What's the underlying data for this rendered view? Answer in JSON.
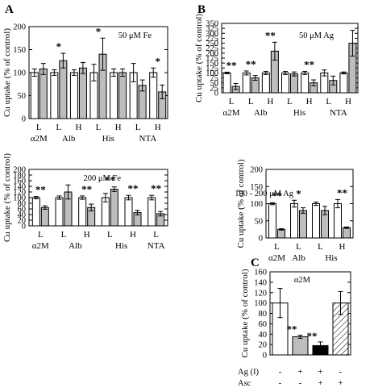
{
  "colors": {
    "white_bar": "#ffffff",
    "gray_bar": "#bdbdbd",
    "black_bar": "#000000",
    "axis": "#000000"
  },
  "chart_data": [
    {
      "panel_letter": "A",
      "type": "bar",
      "annotation": "50 μM Fe",
      "ylabel": "Cu uptake (% of control)",
      "ylim": [
        0,
        200
      ],
      "yticks": [
        "0",
        "50",
        "100",
        "150",
        "200"
      ],
      "groups": [
        {
          "name": "α2M",
          "bars": [
            {
              "label": "L",
              "values": [
                100,
                108
              ],
              "errors": [
                8,
                12
              ],
              "sig": ""
            }
          ]
        },
        {
          "name": "Alb",
          "bars": [
            {
              "label": "L",
              "values": [
                100,
                126
              ],
              "errors": [
                6,
                16
              ],
              "sig": "*"
            },
            {
              "label": "H",
              "values": [
                100,
                110
              ],
              "errors": [
                6,
                12
              ],
              "sig": ""
            }
          ]
        },
        {
          "name": "His",
          "bars": [
            {
              "label": "L",
              "values": [
                100,
                140
              ],
              "errors": [
                18,
                35
              ],
              "sig": "*"
            },
            {
              "label": "H",
              "values": [
                100,
                100
              ],
              "errors": [
                8,
                8
              ],
              "sig": ""
            }
          ]
        },
        {
          "name": "NTA",
          "bars": [
            {
              "label": "L",
              "values": [
                100,
                72
              ],
              "errors": [
                20,
                12
              ],
              "sig": ""
            },
            {
              "label": "H",
              "values": [
                100,
                58
              ],
              "errors": [
                10,
                15
              ],
              "sig": "*"
            }
          ]
        }
      ]
    },
    {
      "panel_letter": "",
      "type": "bar",
      "annotation": "200 μM Fe",
      "ylabel": "Cu uptake (% of control)",
      "ylim": [
        0,
        200
      ],
      "yticks": [
        "0",
        "20",
        "40",
        "60",
        "80",
        "100",
        "120",
        "140",
        "160",
        "180",
        "200"
      ],
      "groups": [
        {
          "name": "α2M",
          "bars": [
            {
              "label": "L",
              "values": [
                100,
                65
              ],
              "errors": [
                4,
                6
              ],
              "sig": "**"
            }
          ]
        },
        {
          "name": "Alb",
          "bars": [
            {
              "label": "L",
              "values": [
                100,
                120
              ],
              "errors": [
                6,
                25
              ],
              "sig": ""
            },
            {
              "label": "H",
              "values": [
                100,
                65
              ],
              "errors": [
                6,
                12
              ],
              "sig": "**"
            }
          ]
        },
        {
          "name": "His",
          "bars": [
            {
              "label": "L",
              "values": [
                100,
                130
              ],
              "errors": [
                15,
                8
              ],
              "sig": "**"
            },
            {
              "label": "H",
              "values": [
                100,
                47
              ],
              "errors": [
                8,
                8
              ],
              "sig": "**"
            }
          ]
        },
        {
          "name": "NTA",
          "bars": [
            {
              "label": "L",
              "values": [
                100,
                43
              ],
              "errors": [
                8,
                8
              ],
              "sig": "**"
            }
          ]
        }
      ]
    },
    {
      "panel_letter": "B",
      "type": "bar",
      "annotation": "50 μM Ag",
      "ylabel": "Cu uptake (% of control)",
      "ylim": [
        0,
        350
      ],
      "yticks": [
        "0",
        "25",
        "50",
        "75",
        "100",
        "125",
        "150",
        "175",
        "200",
        "225",
        "250",
        "275",
        "300",
        "325",
        "350"
      ],
      "groups": [
        {
          "name": "α2M",
          "bars": [
            {
              "label": "L",
              "values": [
                100,
                32
              ],
              "errors": [
                4,
                15
              ],
              "sig": "**"
            }
          ]
        },
        {
          "name": "Alb",
          "bars": [
            {
              "label": "L",
              "values": [
                100,
                75
              ],
              "errors": [
                10,
                12
              ],
              "sig": "**"
            },
            {
              "label": "H",
              "values": [
                100,
                210
              ],
              "errors": [
                8,
                45
              ],
              "sig": "**"
            }
          ]
        },
        {
          "name": "His",
          "bars": [
            {
              "label": "L",
              "values": [
                100,
                95
              ],
              "errors": [
                8,
                10
              ],
              "sig": ""
            },
            {
              "label": "H",
              "values": [
                100,
                50
              ],
              "errors": [
                8,
                15
              ],
              "sig": "**"
            }
          ]
        },
        {
          "name": "NTA",
          "bars": [
            {
              "label": "L",
              "values": [
                100,
                62
              ],
              "errors": [
                15,
                22
              ],
              "sig": ""
            },
            {
              "label": "H",
              "values": [
                100,
                250
              ],
              "errors": [
                5,
                65
              ],
              "sig": ""
            }
          ]
        }
      ]
    },
    {
      "panel_letter": "",
      "type": "bar",
      "annotation": "100 - 200 μM Ag",
      "ylabel": "Cu uptake (% of control)",
      "ylim": [
        0,
        200
      ],
      "yticks": [
        "0",
        "50",
        "100",
        "150",
        "200"
      ],
      "groups": [
        {
          "name": "α2M",
          "bars": [
            {
              "label": "L",
              "values": [
                100,
                25
              ],
              "errors": [
                3,
                2
              ],
              "sig": "**"
            }
          ]
        },
        {
          "name": "Alb",
          "bars": [
            {
              "label": "L",
              "values": [
                100,
                80
              ],
              "errors": [
                10,
                8
              ],
              "sig": "*"
            }
          ]
        },
        {
          "name": "His",
          "bars": [
            {
              "label": "L",
              "values": [
                100,
                80
              ],
              "errors": [
                5,
                12
              ],
              "sig": ""
            },
            {
              "label": "H",
              "values": [
                100,
                30
              ],
              "errors": [
                12,
                2
              ],
              "sig": "**"
            }
          ]
        }
      ]
    },
    {
      "panel_letter": "C",
      "type": "bar",
      "annotation": "α2M",
      "ylabel": "Cu uptake (% of control)",
      "ylim": [
        0,
        160
      ],
      "yticks": [
        "0",
        "20",
        "40",
        "60",
        "80",
        "100",
        "120",
        "140",
        "160"
      ],
      "bars": [
        {
          "value": 100,
          "error": 28,
          "fill": "white",
          "sig": ""
        },
        {
          "value": 35,
          "error": 3,
          "fill": "gray",
          "sig": "**"
        },
        {
          "value": 18,
          "error": 7,
          "fill": "black",
          "sig": "**"
        },
        {
          "value": 100,
          "error": 22,
          "fill": "hatched",
          "sig": ""
        }
      ],
      "conditions": [
        {
          "name": "Ag (I)",
          "values": [
            "-",
            "+",
            "+",
            "-"
          ]
        },
        {
          "name": "Asc",
          "values": [
            "-",
            "-",
            "+",
            "+"
          ]
        }
      ]
    }
  ]
}
